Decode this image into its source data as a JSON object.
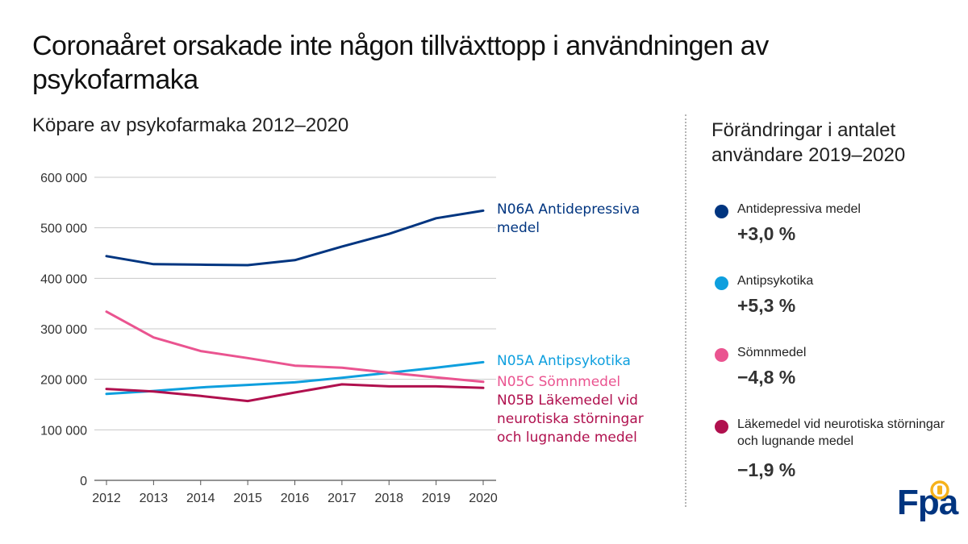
{
  "title": "Coronaåret orsakade inte någon tillväxttopp i användningen av psykofarmaka",
  "subtitle": "Köpare av psykofarmaka 2012–2020",
  "panel": {
    "title": "Förändringar i antalet användare 2019–2020",
    "items": [
      {
        "label": "Antidepressiva medel",
        "change": "+3,0 %",
        "color": "#003580"
      },
      {
        "label": "Antipsykotika",
        "change": "+5,3 %",
        "color": "#0e9fde"
      },
      {
        "label": "Sömnmedel",
        "change": "−4,8 %",
        "color": "#ea5490"
      },
      {
        "label": "Läkemedel vid neurotiska störningar och lugnande medel",
        "change": "−1,9 %",
        "color": "#b0104e"
      }
    ]
  },
  "logo": {
    "text": "Fpa",
    "badge_color": "#f6b21b"
  },
  "chart_data": {
    "type": "line",
    "title": "Köpare av psykofarmaka 2012–2020",
    "xlabel": "",
    "ylabel": "",
    "x": [
      "2012",
      "2013",
      "2014",
      "2015",
      "2016",
      "2017",
      "2018",
      "2019",
      "2020"
    ],
    "ylim": [
      0,
      600000
    ],
    "yticks": [
      0,
      100000,
      200000,
      300000,
      400000,
      500000,
      600000
    ],
    "ytick_labels": [
      "0",
      "100 000",
      "200 000",
      "300 000",
      "400 000",
      "500 000",
      "600 000"
    ],
    "grid": true,
    "series": [
      {
        "name": "N06A Antidepressiva medel",
        "color": "#003580",
        "values": [
          444000,
          428000,
          427000,
          426000,
          436000,
          463000,
          488000,
          519000,
          534000
        ]
      },
      {
        "name": "N05A Antipsykotika",
        "color": "#0e9fde",
        "values": [
          171000,
          177000,
          184000,
          189000,
          194000,
          203000,
          213000,
          223000,
          234000
        ]
      },
      {
        "name": "N05C Sömnmedel",
        "color": "#ea5490",
        "values": [
          334000,
          283000,
          256000,
          242000,
          227000,
          223000,
          213000,
          204000,
          195000
        ]
      },
      {
        "name": "N05B Läkemedel vid neurotiska störningar och lugnande medel",
        "color": "#b0104e",
        "values": [
          181000,
          176000,
          167000,
          157000,
          174000,
          190000,
          186000,
          186000,
          183000
        ]
      }
    ],
    "annotations": [
      {
        "series": 0,
        "lines": [
          "N06A Antidepressiva",
          "medel"
        ]
      },
      {
        "series": 1,
        "lines": [
          "N05A Antipsykotika"
        ]
      },
      {
        "series": 2,
        "lines": [
          "N05C Sömnmedel"
        ]
      },
      {
        "series": 3,
        "lines": [
          "N05B Läkemedel vid",
          "neurotiska störningar",
          "och lugnande medel"
        ]
      }
    ]
  }
}
